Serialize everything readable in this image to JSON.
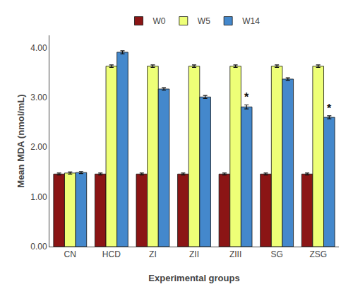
{
  "chart_data": {
    "type": "bar",
    "xlabel": "Experimental groups",
    "ylabel": "Mean MDA (nmol/mL)",
    "categories": [
      "CN",
      "HCD",
      "ZI",
      "ZII",
      "ZIII",
      "SG",
      "ZSG"
    ],
    "series": [
      {
        "name": "W0",
        "color": "#8B1515",
        "values": [
          1.46,
          1.46,
          1.46,
          1.46,
          1.46,
          1.46,
          1.46
        ],
        "errors": [
          0.02,
          0.02,
          0.02,
          0.02,
          0.02,
          0.02,
          0.02
        ]
      },
      {
        "name": "W5",
        "color": "#EEFF77",
        "values": [
          1.48,
          3.63,
          3.63,
          3.63,
          3.63,
          3.63,
          3.63
        ],
        "errors": [
          0.02,
          0.025,
          0.025,
          0.025,
          0.025,
          0.025,
          0.025
        ]
      },
      {
        "name": "W14",
        "color": "#4488CC",
        "values": [
          1.49,
          3.91,
          3.17,
          3.01,
          2.81,
          3.37,
          2.6
        ],
        "errors": [
          0.02,
          0.03,
          0.025,
          0.03,
          0.04,
          0.025,
          0.03
        ]
      }
    ],
    "annotations": [
      {
        "text": "*",
        "category": "ZIII",
        "series": "W14"
      },
      {
        "text": "*",
        "category": "ZSG",
        "series": "W14"
      }
    ],
    "ylim": [
      0.0,
      4.25
    ],
    "yticks": [
      {
        "value": 0.0,
        "label": "0.00"
      },
      {
        "value": 1.0,
        "label": "1.00"
      },
      {
        "value": 2.0,
        "label": "2.00"
      },
      {
        "value": 3.0,
        "label": "3.00"
      },
      {
        "value": 4.0,
        "label": "4.00"
      }
    ],
    "grid": false,
    "legend": "top"
  }
}
